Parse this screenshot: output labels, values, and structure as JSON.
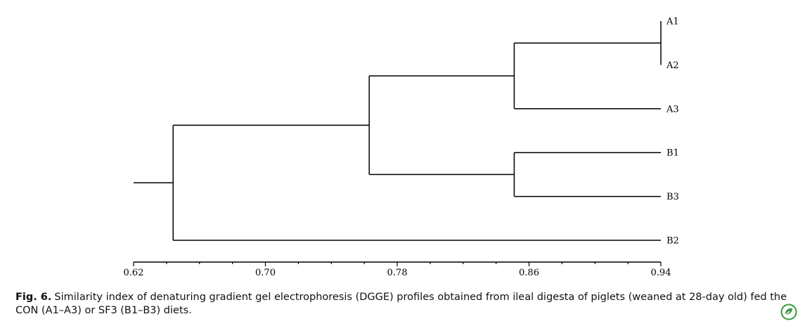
{
  "chart_data": {
    "type": "dendrogram",
    "orientation": "horizontal",
    "xlim": [
      0.62,
      0.94
    ],
    "ticks": [
      "0.62",
      "0.70",
      "0.78",
      "0.86",
      "0.94"
    ],
    "leaves": [
      "A1",
      "A2",
      "A3",
      "B1",
      "B3",
      "B2"
    ],
    "merges": [
      {
        "children": [
          "A1",
          "A2"
        ],
        "similarity": 0.94
      },
      {
        "children": [
          "A1-A2",
          "A3"
        ],
        "similarity": 0.851
      },
      {
        "children": [
          "B1",
          "B3"
        ],
        "similarity": 0.851
      },
      {
        "children": [
          "A-cluster",
          "B1-B3"
        ],
        "similarity": 0.763
      },
      {
        "children": [
          "A-B1-B3",
          "B2"
        ],
        "similarity": 0.644
      }
    ],
    "root_similarity": 0.62
  },
  "caption": {
    "label": "Fig. 6.",
    "text": "Similarity index of denaturing gradient gel electrophoresis (DGGE) profiles obtained from ileal digesta of piglets (weaned at 28-day old) fed the CON (A1–A3) or SF3 (B1–B3) diets."
  },
  "colors": {
    "ink": "#000000",
    "badge": "#3a9a3a"
  },
  "icons": {
    "badge": "leaf-badge-icon"
  }
}
